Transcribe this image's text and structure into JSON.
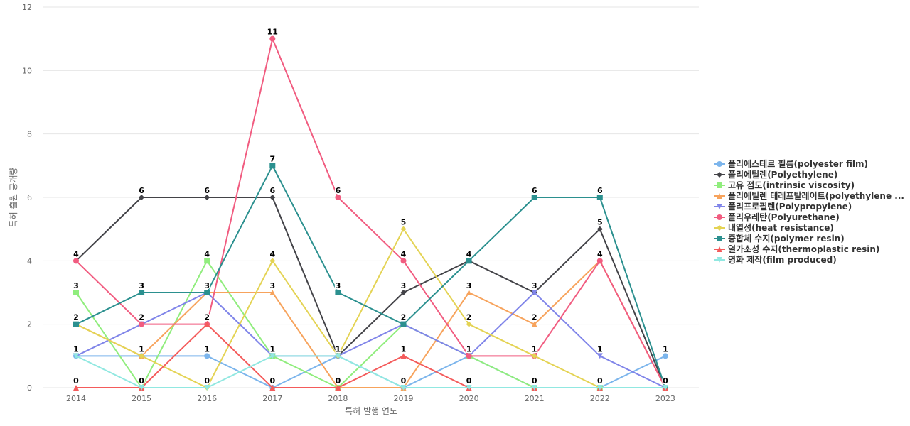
{
  "chart_data": {
    "type": "line",
    "title": "",
    "xlabel": "특허 발행 연도",
    "ylabel": "특허 출원 공개량",
    "ylim": [
      0,
      12
    ],
    "yticks": [
      0,
      2,
      4,
      6,
      8,
      10,
      12
    ],
    "grid": true,
    "legend_position": "right",
    "categories": [
      "2014",
      "2015",
      "2016",
      "2017",
      "2018",
      "2019",
      "2020",
      "2021",
      "2022",
      "2023"
    ],
    "series": [
      {
        "name": "폴리에스테르 필름(polyester film)",
        "color": "#7cb5ec",
        "marker": "circle",
        "values": [
          1,
          1,
          1,
          0,
          1,
          0,
          1,
          0,
          0,
          1
        ]
      },
      {
        "name": "폴리에틸렌(Polyethylene)",
        "color": "#434348",
        "marker": "diamond",
        "values": [
          4,
          6,
          6,
          6,
          1,
          3,
          4,
          3,
          5,
          0
        ]
      },
      {
        "name": "고유 점도(intrinsic viscosity)",
        "color": "#90ed7d",
        "marker": "square",
        "values": [
          3,
          0,
          4,
          1,
          0,
          2,
          1,
          0,
          0,
          0
        ]
      },
      {
        "name": "폴리에틸렌 테레프탈레이트(polyethylene ...",
        "color": "#f7a35c",
        "marker": "triangle",
        "values": [
          2,
          1,
          3,
          3,
          0,
          0,
          3,
          2,
          4,
          0
        ]
      },
      {
        "name": "폴리프로필렌(Polypropylene)",
        "color": "#8085e9",
        "marker": "triangle-down",
        "values": [
          1,
          2,
          3,
          1,
          1,
          2,
          1,
          3,
          1,
          0
        ]
      },
      {
        "name": "폴리우레탄(Polyurethane)",
        "color": "#f15c80",
        "marker": "circle",
        "values": [
          4,
          2,
          2,
          11,
          6,
          4,
          1,
          1,
          4,
          0
        ]
      },
      {
        "name": "내열성(heat resistance)",
        "color": "#e4d354",
        "marker": "diamond",
        "values": [
          2,
          1,
          0,
          4,
          1,
          5,
          2,
          1,
          0,
          0
        ]
      },
      {
        "name": "중합체 수지(polymer resin)",
        "color": "#2b908f",
        "marker": "square",
        "values": [
          2,
          3,
          3,
          7,
          3,
          2,
          4,
          6,
          6,
          0
        ]
      },
      {
        "name": "열가소성 수지(thermoplastic resin)",
        "color": "#f45b5b",
        "marker": "triangle",
        "values": [
          0,
          0,
          2,
          0,
          0,
          1,
          0,
          0,
          0,
          0
        ]
      },
      {
        "name": "영화 제작(film produced)",
        "color": "#91e8e1",
        "marker": "triangle-down",
        "values": [
          1,
          0,
          0,
          1,
          1,
          0,
          0,
          0,
          0,
          0
        ]
      }
    ],
    "data_labels": [
      {
        "category": "2014",
        "values": [
          4,
          3,
          2,
          1,
          0
        ]
      },
      {
        "category": "2015",
        "values": [
          6,
          3,
          2,
          1,
          0
        ]
      },
      {
        "category": "2016",
        "values": [
          6,
          4,
          3,
          2,
          1,
          0
        ]
      },
      {
        "category": "2017",
        "values": [
          11,
          7,
          6,
          4,
          3,
          1,
          0
        ]
      },
      {
        "category": "2018",
        "values": [
          6,
          3,
          1,
          0
        ]
      },
      {
        "category": "2019",
        "values": [
          5,
          4,
          3,
          2,
          1,
          0
        ]
      },
      {
        "category": "2020",
        "values": [
          4,
          3,
          2,
          1,
          0
        ]
      },
      {
        "category": "2021",
        "values": [
          6,
          3,
          2,
          1,
          0
        ]
      },
      {
        "category": "2022",
        "values": [
          6,
          5,
          4,
          1,
          0
        ]
      },
      {
        "category": "2023",
        "values": [
          1,
          0
        ]
      }
    ]
  }
}
